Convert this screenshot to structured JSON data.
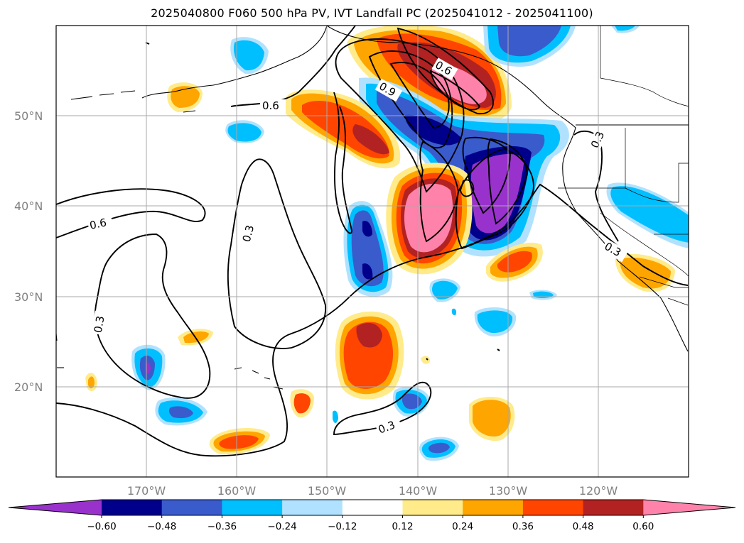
{
  "title": "2025040800 F060 500 hPa PV, IVT Landfall PC (2025041012 - 2025041100)",
  "axes": {
    "lat_labels": [
      "50°N",
      "40°N",
      "30°N",
      "20°N"
    ],
    "lon_labels": [
      "170°W",
      "160°W",
      "150°W",
      "140°W",
      "130°W",
      "120°W"
    ],
    "lat_range": [
      10,
      60
    ],
    "lon_range": [
      -180,
      -110
    ],
    "grid": true
  },
  "contour_labels": [
    "0.6",
    "0.9",
    "0.6",
    "0.3",
    "0.6",
    "0.3",
    "0.3",
    "0.3",
    "0.3"
  ],
  "colorbar": {
    "colors": [
      "#9932cc",
      "#00008b",
      "#3a5bcc",
      "#00bfff",
      "#b0e2ff",
      "#ffffff",
      "#ffeb8a",
      "#ffa500",
      "#ff4500",
      "#b22222",
      "#ff82ab"
    ],
    "ticks": [
      "−0.60",
      "−0.48",
      "−0.36",
      "−0.24",
      "−0.12",
      "0.12",
      "0.24",
      "0.36",
      "0.48",
      "0.60"
    ],
    "extend": "both"
  }
}
